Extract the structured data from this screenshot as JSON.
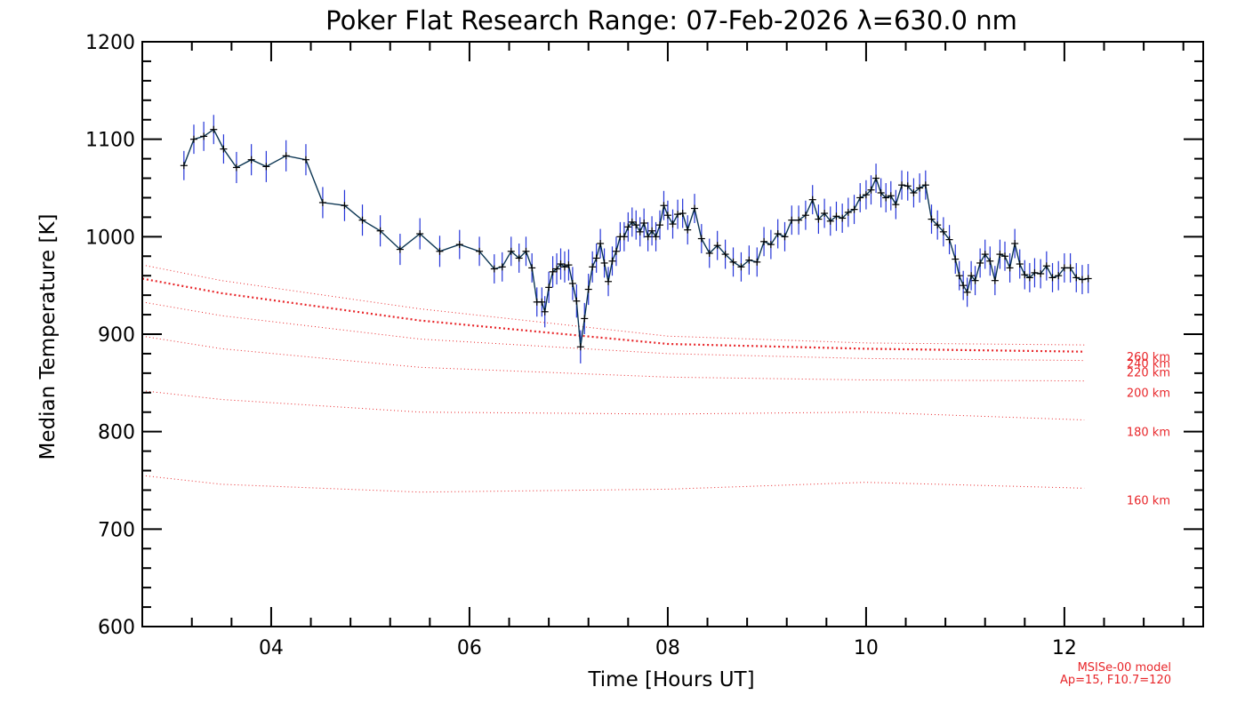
{
  "chart_data": {
    "type": "line",
    "title": "Poker Flat Research Range: 07-Feb-2026 λ=630.0 nm",
    "xlabel": "Time [Hours UT]",
    "ylabel": "Median Temperature [K]",
    "xlim": [
      2.7,
      13.4
    ],
    "ylim": [
      600,
      1200
    ],
    "xticks": [
      4,
      6,
      8,
      10,
      12
    ],
    "xtick_labels": [
      "04",
      "06",
      "08",
      "10",
      "12"
    ],
    "yticks": [
      600,
      700,
      800,
      900,
      1000,
      1100,
      1200
    ],
    "ytick_labels": [
      "600",
      "700",
      "800",
      "900",
      "1000",
      "1100",
      "1200"
    ],
    "grid": false,
    "colors": {
      "data_line": "#0b3553",
      "error_bars": "#2535d8",
      "markers": "#000000",
      "model": "#e8262a"
    },
    "series": [
      {
        "type": "line_with_errorbars",
        "x": [
          3.12,
          3.22,
          3.32,
          3.42,
          3.52,
          3.65,
          3.8,
          3.95,
          4.15,
          4.35,
          4.52,
          4.74,
          4.92,
          5.1,
          5.3,
          5.5,
          5.7,
          5.9,
          6.1,
          6.25,
          6.33,
          6.42,
          6.5,
          6.57,
          6.63,
          6.68,
          6.73,
          6.76,
          6.8,
          6.84,
          6.88,
          6.92,
          6.96,
          7.0,
          7.04,
          7.08,
          7.12,
          7.16,
          7.2,
          7.24,
          7.28,
          7.32,
          7.36,
          7.4,
          7.44,
          7.48,
          7.52,
          7.56,
          7.6,
          7.64,
          7.68,
          7.72,
          7.76,
          7.8,
          7.84,
          7.88,
          7.92,
          7.96,
          8.0,
          8.05,
          8.1,
          8.15,
          8.2,
          8.27,
          8.34,
          8.42,
          8.5,
          8.58,
          8.66,
          8.74,
          8.82,
          8.9,
          8.97,
          9.04,
          9.11,
          9.18,
          9.25,
          9.32,
          9.39,
          9.46,
          9.52,
          9.58,
          9.64,
          9.7,
          9.76,
          9.82,
          9.88,
          9.94,
          10.0,
          10.05,
          10.1,
          10.15,
          10.2,
          10.25,
          10.3,
          10.36,
          10.42,
          10.48,
          10.54,
          10.6,
          10.66,
          10.72,
          10.78,
          10.84,
          10.9,
          10.94,
          10.98,
          11.02,
          11.06,
          11.1,
          11.15,
          11.2,
          11.25,
          11.3,
          11.35,
          11.4,
          11.45,
          11.5,
          11.55,
          11.6,
          11.65,
          11.7,
          11.76,
          11.82,
          11.88,
          11.94,
          12.0,
          12.06,
          12.12,
          12.18,
          12.24
        ],
        "y": [
          1073,
          1100,
          1103,
          1110,
          1090,
          1071,
          1079,
          1072,
          1083,
          1079,
          1035,
          1032,
          1017,
          1006,
          987,
          1003,
          985,
          992,
          985,
          967,
          969,
          985,
          978,
          985,
          968,
          933,
          933,
          923,
          948,
          964,
          967,
          972,
          969,
          971,
          952,
          934,
          887,
          916,
          946,
          969,
          978,
          993,
          973,
          954,
          975,
          985,
          1000,
          1000,
          1010,
          1015,
          1012,
          1005,
          1014,
          1000,
          1006,
          1000,
          1012,
          1032,
          1022,
          1013,
          1023,
          1024,
          1007,
          1029,
          998,
          983,
          991,
          982,
          974,
          969,
          976,
          974,
          995,
          992,
          1003,
          1000,
          1017,
          1017,
          1022,
          1038,
          1018,
          1024,
          1016,
          1021,
          1019,
          1025,
          1028,
          1040,
          1043,
          1048,
          1060,
          1045,
          1040,
          1042,
          1033,
          1053,
          1052,
          1045,
          1050,
          1053,
          1018,
          1012,
          1005,
          997,
          977,
          960,
          950,
          943,
          960,
          955,
          973,
          982,
          975,
          955,
          982,
          980,
          968,
          993,
          972,
          961,
          958,
          963,
          962,
          970,
          958,
          960,
          968,
          968,
          958,
          956,
          957
        ],
        "error": [
          15,
          15,
          15,
          15,
          15,
          16,
          16,
          16,
          16,
          16,
          16,
          16,
          16,
          16,
          16,
          16,
          16,
          15,
          15,
          15,
          15,
          15,
          15,
          15,
          15,
          15,
          15,
          16,
          16,
          16,
          16,
          16,
          16,
          16,
          17,
          17,
          17,
          16,
          16,
          16,
          15,
          15,
          15,
          15,
          15,
          15,
          15,
          15,
          15,
          15,
          15,
          15,
          15,
          15,
          15,
          15,
          15,
          15,
          15,
          15,
          15,
          15,
          15,
          15,
          15,
          15,
          15,
          15,
          15,
          15,
          15,
          15,
          15,
          15,
          15,
          15,
          15,
          15,
          15,
          15,
          15,
          15,
          15,
          15,
          15,
          15,
          15,
          15,
          15,
          15,
          15,
          15,
          15,
          15,
          15,
          15,
          15,
          15,
          15,
          15,
          15,
          15,
          15,
          15,
          15,
          15,
          15,
          15,
          15,
          15,
          15,
          15,
          15,
          15,
          15,
          15,
          15,
          15,
          15,
          15,
          15,
          15,
          15,
          15,
          15,
          15,
          15,
          15,
          15,
          15,
          15
        ]
      }
    ],
    "model_curves": [
      {
        "label": "160 km",
        "x": [
          2.7,
          3.5,
          5.5,
          8.0,
          10.0,
          12.2
        ],
        "y": [
          755,
          746,
          738,
          741,
          748,
          742
        ]
      },
      {
        "label": "180 km",
        "x": [
          2.7,
          3.5,
          5.5,
          8.0,
          10.0,
          12.2
        ],
        "y": [
          842,
          833,
          820,
          818,
          820,
          812
        ]
      },
      {
        "label": "200 km",
        "x": [
          2.7,
          3.5,
          5.5,
          8.0,
          10.0,
          12.2
        ],
        "y": [
          898,
          885,
          866,
          856,
          853,
          852
        ]
      },
      {
        "label": "220 km",
        "x": [
          2.7,
          3.5,
          5.5,
          8.0,
          10.0,
          12.2
        ],
        "y": [
          933,
          919,
          895,
          880,
          875,
          873
        ]
      },
      {
        "label": "240 km",
        "x": [
          2.7,
          3.5,
          5.5,
          8.0,
          10.0,
          12.2
        ],
        "y": [
          957,
          942,
          914,
          890,
          885,
          882
        ]
      },
      {
        "label": "260 km",
        "x": [
          2.7,
          3.5,
          5.5,
          8.0,
          10.0,
          12.2
        ],
        "y": [
          971,
          955,
          926,
          898,
          891,
          889
        ]
      }
    ],
    "model_note": [
      "MSISe-00 model",
      "Ap=15, F10.7=120"
    ]
  }
}
